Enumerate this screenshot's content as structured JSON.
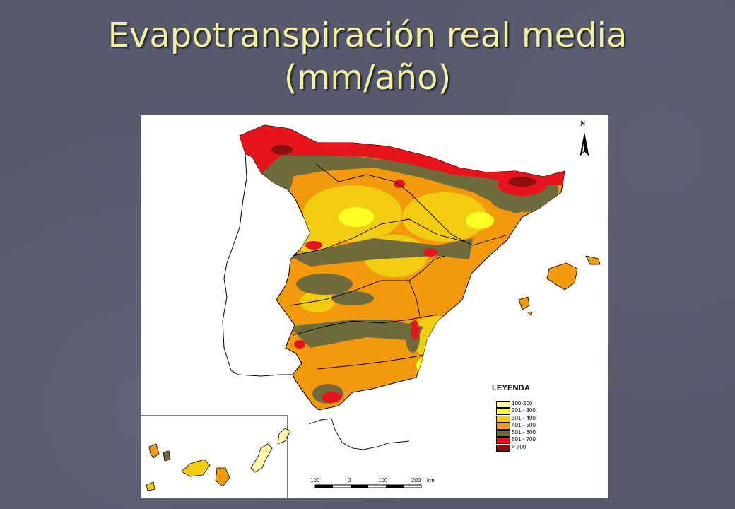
{
  "slide": {
    "title_line1": "Evapotranspiración real media",
    "title_line2": "(mm/año)"
  },
  "map": {
    "north_label": "N",
    "legend": {
      "title": "LEYENDA",
      "items": [
        {
          "label": "100-200",
          "color": "#fff6a8"
        },
        {
          "label": "201 - 300",
          "color": "#ffff22"
        },
        {
          "label": "301 - 400",
          "color": "#f2cc10"
        },
        {
          "label": "401 - 500",
          "color": "#f29a0c"
        },
        {
          "label": "501 - 600",
          "color": "#6f6b3c"
        },
        {
          "label": "601 - 700",
          "color": "#e8141c"
        },
        {
          "label": "> 700",
          "color": "#8c1010"
        }
      ]
    },
    "scale_bar": {
      "ticks": [
        "100",
        "0",
        "100",
        "200"
      ],
      "unit": "km"
    }
  }
}
